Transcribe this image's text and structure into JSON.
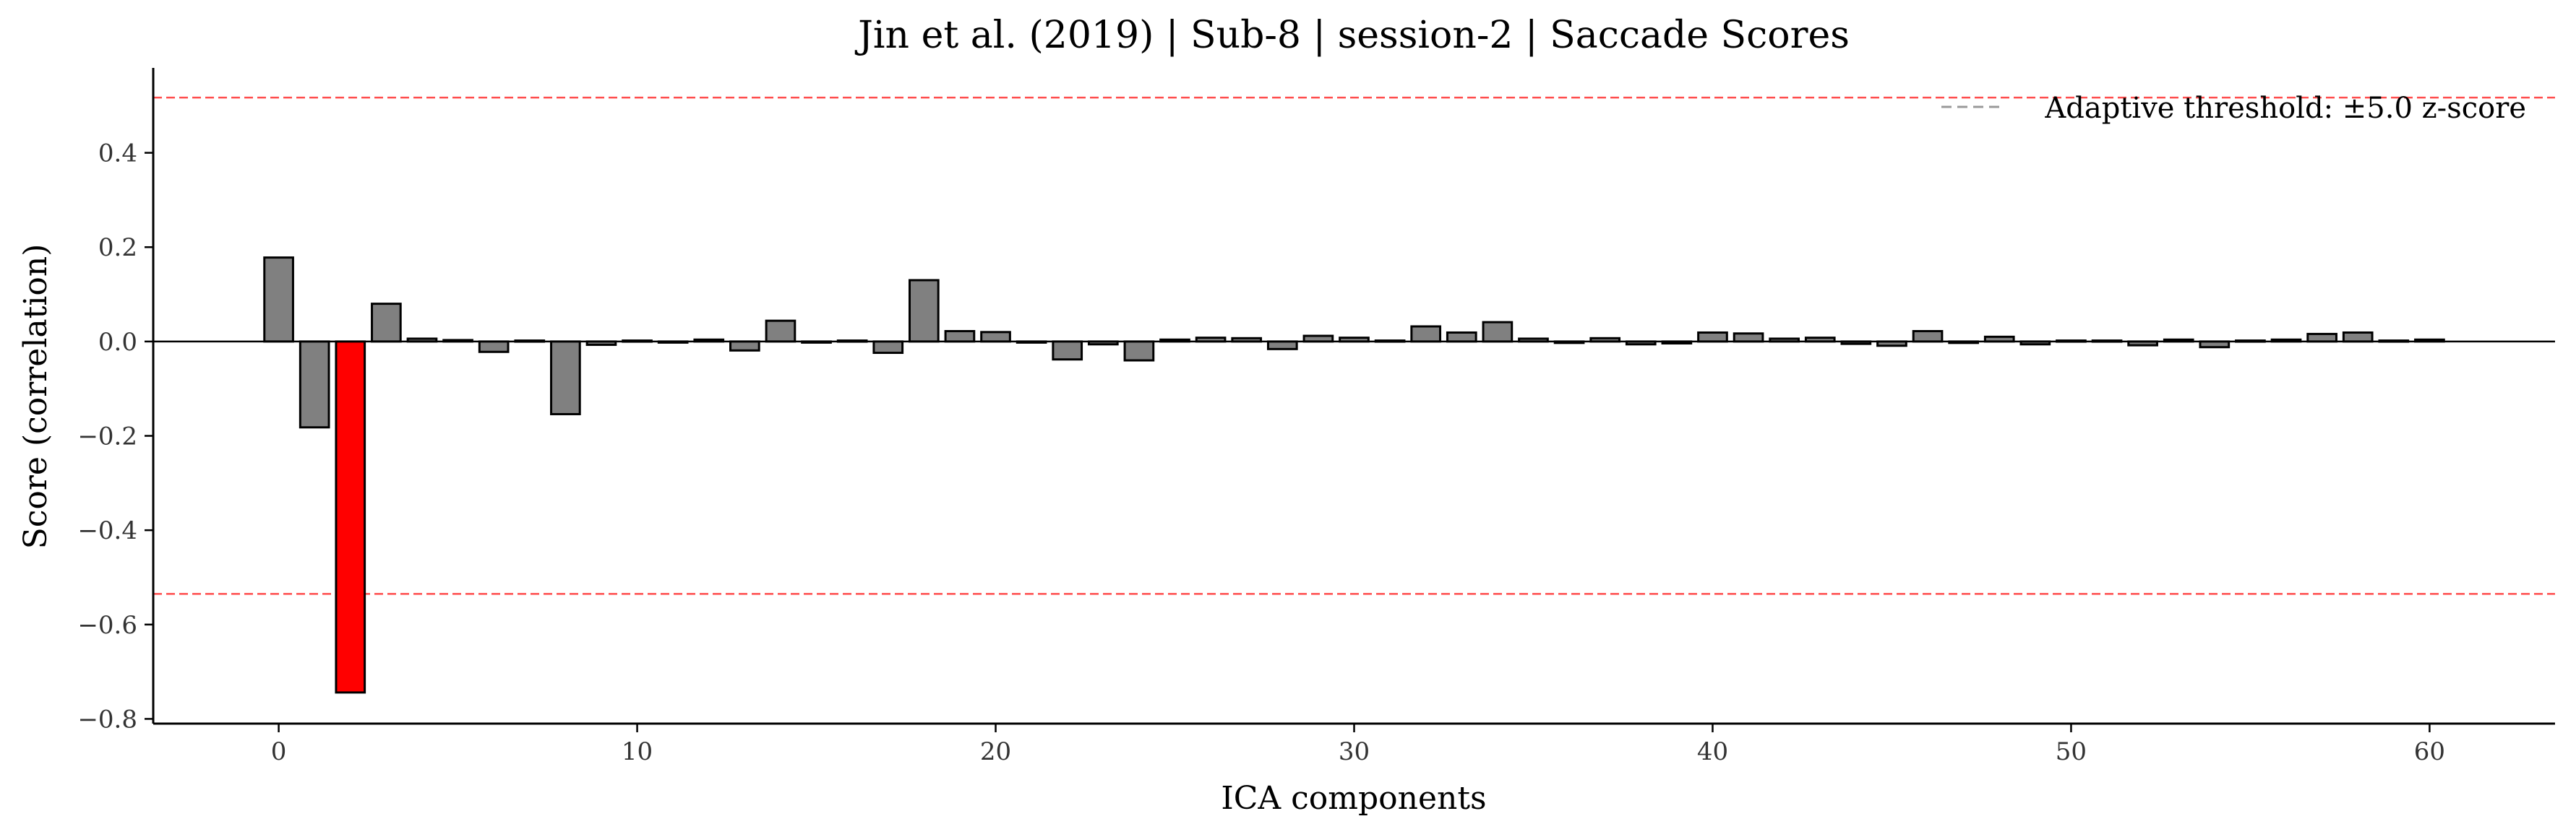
{
  "chart_data": {
    "type": "bar",
    "title": "Jin et al. (2019) | Sub-8 | session-2 | Saccade Scores",
    "xlabel": "ICA components",
    "ylabel": "Score (correlation)",
    "xlim": [
      -3.5,
      63.5
    ],
    "ylim": [
      -0.81,
      0.58
    ],
    "xticks": [
      0,
      10,
      20,
      30,
      40,
      50,
      60
    ],
    "xtick_labels": [
      "0",
      "10",
      "20",
      "30",
      "40",
      "50",
      "60"
    ],
    "yticks": [
      0.4,
      0.2,
      0.0,
      -0.2,
      -0.4,
      -0.6,
      -0.8
    ],
    "ytick_labels": [
      "0.4",
      "0.2",
      "0.0",
      "−0.2",
      "−0.4",
      "−0.6",
      "−0.8"
    ],
    "grid": false,
    "legend_position": "top-right",
    "threshold": {
      "label": "Adaptive threshold: ±5.0 z-score",
      "upper": 0.517,
      "lower": -0.535,
      "color": "#ff4d4d"
    },
    "bar_color": "#808080",
    "highlight_color": "#ff0000",
    "highlighted_indices": [
      2
    ],
    "x": [
      0,
      1,
      2,
      3,
      4,
      5,
      6,
      7,
      8,
      9,
      10,
      11,
      12,
      13,
      14,
      15,
      16,
      17,
      18,
      19,
      20,
      21,
      22,
      23,
      24,
      25,
      26,
      27,
      28,
      29,
      30,
      31,
      32,
      33,
      34,
      35,
      36,
      37,
      38,
      39,
      40,
      41,
      42,
      43,
      44,
      45,
      46,
      47,
      48,
      49,
      50,
      51,
      52,
      53,
      54,
      55,
      56,
      57,
      58,
      59,
      60
    ],
    "values": [
      0.178,
      -0.182,
      -0.744,
      0.08,
      0.006,
      0.003,
      -0.022,
      0.002,
      -0.154,
      -0.007,
      0.002,
      -0.002,
      0.004,
      -0.019,
      0.044,
      -0.002,
      0.002,
      -0.024,
      0.13,
      0.022,
      0.02,
      -0.002,
      -0.038,
      -0.006,
      -0.04,
      0.004,
      0.008,
      0.007,
      -0.016,
      0.012,
      0.008,
      0.002,
      0.032,
      0.019,
      0.041,
      0.006,
      -0.003,
      0.007,
      -0.006,
      -0.004,
      0.019,
      0.017,
      0.006,
      0.008,
      -0.005,
      -0.009,
      0.022,
      -0.003,
      0.01,
      -0.006,
      0.002,
      0.002,
      -0.008,
      0.004,
      -0.012,
      0.002,
      0.004,
      0.016,
      0.019,
      0.002,
      0.004
    ]
  }
}
